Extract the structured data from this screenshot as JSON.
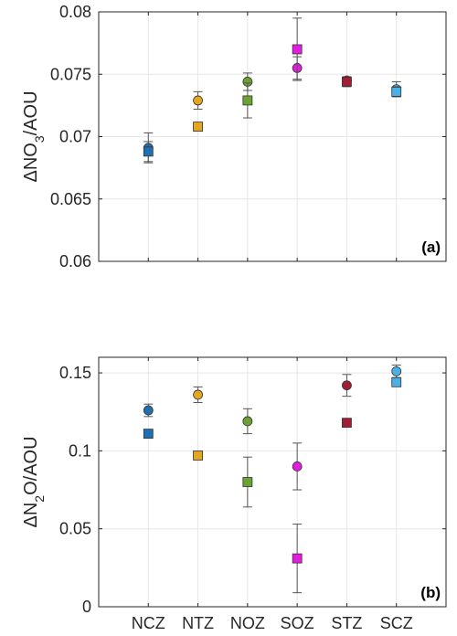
{
  "chart_data": [
    {
      "type": "scatter",
      "panel_label": "(a)",
      "ylabel_parts": [
        "ΔNO",
        "3",
        "/AOU"
      ],
      "categories": [
        "NCZ",
        "NTZ",
        "NOZ",
        "SOZ",
        "STZ",
        "SCZ"
      ],
      "show_category_labels": false,
      "ylim": [
        0.06,
        0.08
      ],
      "yticks": [
        0.06,
        0.065,
        0.07,
        0.075,
        0.08
      ],
      "ytick_labels": [
        "0.06",
        "0.065",
        "0.07",
        "0.075",
        "0.08"
      ],
      "grid": true,
      "colors": [
        "#1f6fb4",
        "#e6a520",
        "#6aa32f",
        "#e31ce0",
        "#a01f34",
        "#4ab0e6"
      ],
      "series": [
        {
          "marker": "circle",
          "values": [
            0.0691,
            0.0729,
            0.0744,
            0.0755,
            0.0745,
            0.0738
          ],
          "err": [
            0.0012,
            0.0007,
            0.0007,
            0.0009,
            0.0003,
            0.0006
          ]
        },
        {
          "marker": "square",
          "values": [
            0.0688,
            0.0708,
            0.0729,
            0.077,
            0.0744,
            0.0736
          ],
          "err": [
            0.0008,
            0.0003,
            0.0014,
            0.0025,
            0.0004,
            0.0004
          ]
        }
      ]
    },
    {
      "type": "scatter",
      "panel_label": "(b)",
      "ylabel_parts": [
        "ΔN",
        "2",
        "O/AOU"
      ],
      "categories": [
        "NCZ",
        "NTZ",
        "NOZ",
        "SOZ",
        "STZ",
        "SCZ"
      ],
      "show_category_labels": true,
      "ylim": [
        0,
        0.16
      ],
      "yticks": [
        0,
        0.05,
        0.1,
        0.15
      ],
      "ytick_labels": [
        "0",
        "0.05",
        "0.1",
        "0.15"
      ],
      "grid": true,
      "colors": [
        "#1f6fb4",
        "#e6a520",
        "#6aa32f",
        "#e31ce0",
        "#a01f34",
        "#4ab0e6"
      ],
      "series": [
        {
          "marker": "circle",
          "values": [
            0.126,
            0.136,
            0.119,
            0.09,
            0.142,
            0.151
          ],
          "err": [
            0.004,
            0.005,
            0.008,
            0.015,
            0.007,
            0.004
          ]
        },
        {
          "marker": "square",
          "values": [
            0.111,
            0.097,
            0.08,
            0.031,
            0.118,
            0.144
          ],
          "err": [
            0.001,
            0.001,
            0.016,
            0.022,
            0.001,
            0.001
          ]
        }
      ]
    }
  ]
}
